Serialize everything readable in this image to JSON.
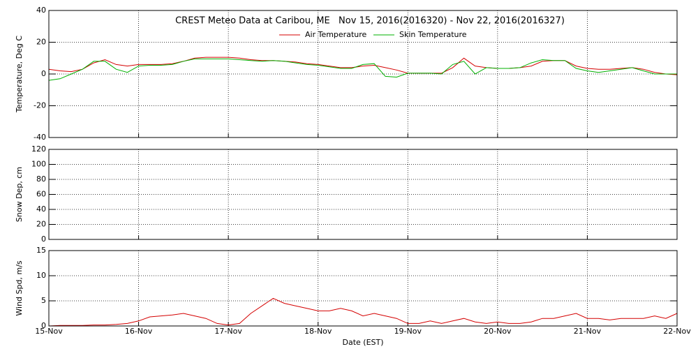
{
  "chart_data": [
    {
      "type": "line",
      "title": "CREST Meteo Data at Caribou, ME   Nov 15, 2016(2016320) - Nov 22, 2016(2016327)",
      "ylabel": "Temperature, Deg C",
      "legend": "top",
      "grid": true,
      "xlim": [
        15,
        22
      ],
      "xticks": [
        15,
        16,
        17,
        18,
        19,
        20,
        21,
        22
      ],
      "ylim": [
        -40,
        40
      ],
      "yticks": [
        -40,
        -20,
        0,
        20,
        40
      ],
      "x": [
        15,
        15.125,
        15.25,
        15.375,
        15.5,
        15.625,
        15.75,
        15.875,
        16,
        16.125,
        16.25,
        16.375,
        16.5,
        16.625,
        16.75,
        16.875,
        17,
        17.125,
        17.25,
        17.375,
        17.5,
        17.625,
        17.75,
        17.875,
        18,
        18.125,
        18.25,
        18.375,
        18.5,
        18.625,
        18.75,
        18.875,
        19,
        19.125,
        19.25,
        19.375,
        19.5,
        19.625,
        19.75,
        19.875,
        20,
        20.125,
        20.25,
        20.375,
        20.5,
        20.625,
        20.75,
        20.875,
        21,
        21.125,
        21.25,
        21.375,
        21.5,
        21.625,
        21.75,
        21.875,
        22
      ],
      "series": [
        {
          "name": "Air Temperature",
          "color": "#d40000",
          "values": [
            3,
            2,
            1.5,
            3,
            7,
            9,
            6,
            5,
            6,
            6,
            6,
            6.5,
            8,
            10,
            10.5,
            10.5,
            10.5,
            10,
            9,
            8.5,
            8.5,
            8,
            7.5,
            6.5,
            6,
            5,
            4,
            4,
            5,
            5.5,
            4,
            2.5,
            0.5,
            0.5,
            0.5,
            0.5,
            4,
            10,
            5,
            4,
            3.5,
            3.5,
            4,
            5,
            8,
            8.5,
            8.5,
            5,
            3.5,
            3,
            3,
            3.5,
            4,
            3,
            1,
            0,
            -0.5
          ]
        },
        {
          "name": "Skin Temperature",
          "color": "#00b000",
          "values": [
            -4,
            -3,
            0,
            3,
            8,
            8,
            3,
            1,
            5,
            5.5,
            5.5,
            6,
            8,
            9.5,
            9.5,
            9.5,
            9.5,
            9,
            8.5,
            8,
            8.5,
            8,
            7,
            6,
            5.5,
            4.5,
            3.5,
            3.5,
            6,
            6.5,
            -1.5,
            -2,
            0.5,
            0.5,
            0.5,
            0,
            6,
            8,
            0,
            4,
            3.5,
            3.5,
            4,
            7,
            9,
            8.5,
            8.5,
            3.5,
            2,
            1,
            2,
            3,
            4,
            2,
            0,
            0,
            0
          ]
        }
      ]
    },
    {
      "type": "line",
      "ylabel": "Snow Dep, cm",
      "grid": true,
      "xlim": [
        15,
        22
      ],
      "xticks": [
        15,
        16,
        17,
        18,
        19,
        20,
        21,
        22
      ],
      "ylim": [
        0,
        120
      ],
      "yticks": [
        0,
        20,
        40,
        60,
        80,
        100,
        120
      ],
      "series": []
    },
    {
      "type": "line",
      "ylabel": "Wind Spd, m/s",
      "xlabel": "Date (EST)",
      "grid": true,
      "xlim": [
        15,
        22
      ],
      "xticks": [
        {
          "value": 15,
          "label": "15-Nov"
        },
        {
          "value": 16,
          "label": "16-Nov"
        },
        {
          "value": 17,
          "label": "17-Nov"
        },
        {
          "value": 18,
          "label": "18-Nov"
        },
        {
          "value": 19,
          "label": "19-Nov"
        },
        {
          "value": 20,
          "label": "20-Nov"
        },
        {
          "value": 21,
          "label": "21-Nov"
        },
        {
          "value": 22,
          "label": "22-Nov"
        }
      ],
      "ylim": [
        0,
        15
      ],
      "yticks": [
        0,
        5,
        10,
        15
      ],
      "x": [
        15,
        15.125,
        15.25,
        15.375,
        15.5,
        15.625,
        15.75,
        15.875,
        16,
        16.125,
        16.25,
        16.375,
        16.5,
        16.625,
        16.75,
        16.875,
        17,
        17.125,
        17.25,
        17.375,
        17.5,
        17.625,
        17.75,
        17.875,
        18,
        18.125,
        18.25,
        18.375,
        18.5,
        18.625,
        18.75,
        18.875,
        19,
        19.125,
        19.25,
        19.375,
        19.5,
        19.625,
        19.75,
        19.875,
        20,
        20.125,
        20.25,
        20.375,
        20.5,
        20.625,
        20.75,
        20.875,
        21,
        21.125,
        21.25,
        21.375,
        21.5,
        21.625,
        21.75,
        21.875,
        22
      ],
      "series": [
        {
          "name": "Wind Speed",
          "color": "#d40000",
          "values": [
            0,
            0.1,
            0.1,
            0.1,
            0.2,
            0.2,
            0.3,
            0.5,
            1,
            1.8,
            2,
            2.2,
            2.5,
            2,
            1.5,
            0.5,
            0.2,
            0.5,
            2.5,
            4,
            5.5,
            4.5,
            4,
            3.5,
            3,
            3,
            3.5,
            3,
            2,
            2.5,
            2,
            1.5,
            0.5,
            0.5,
            1,
            0.5,
            1,
            1.5,
            0.8,
            0.5,
            0.8,
            0.5,
            0.5,
            0.8,
            1.5,
            1.5,
            2,
            2.5,
            1.5,
            1.5,
            1.2,
            1.5,
            1.5,
            1.5,
            2,
            1.5,
            2.5
          ]
        }
      ]
    }
  ]
}
